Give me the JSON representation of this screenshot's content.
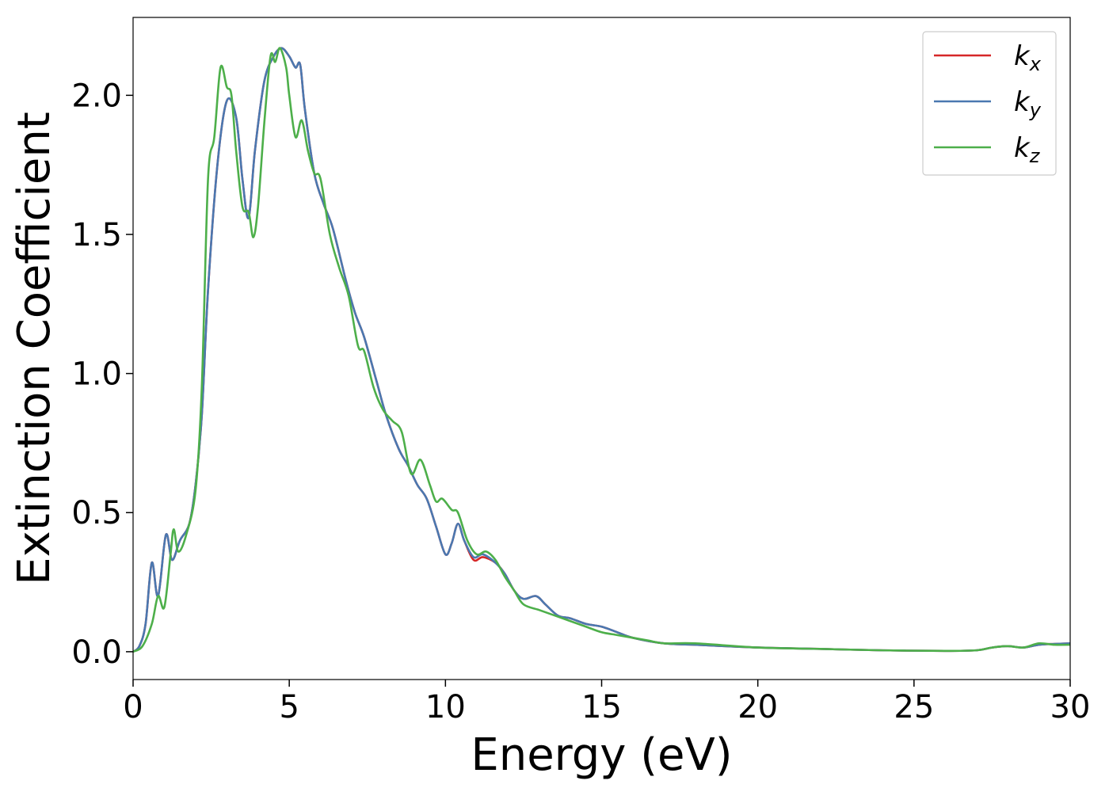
{
  "chart_data": {
    "type": "line",
    "title": "",
    "xlabel": "Energy (eV)",
    "ylabel": "Extinction Coefficient",
    "xlim": [
      0,
      30
    ],
    "ylim": [
      -0.1,
      2.28
    ],
    "xticks": [
      0,
      5,
      10,
      15,
      20,
      25,
      30
    ],
    "xtick_labels": [
      "0",
      "5",
      "10",
      "15",
      "20",
      "25",
      "30"
    ],
    "yticks": [
      0.0,
      0.5,
      1.0,
      1.5,
      2.0
    ],
    "ytick_labels": [
      "0.0",
      "0.5",
      "1.0",
      "1.5",
      "2.0"
    ],
    "grid": false,
    "legend_position": "top-right",
    "series": [
      {
        "name": "k",
        "subscript": "x",
        "color": "#d62728",
        "points": [
          [
            0,
            0
          ],
          [
            0.2,
            0.02
          ],
          [
            0.4,
            0.1
          ],
          [
            0.6,
            0.32
          ],
          [
            0.8,
            0.2
          ],
          [
            1.05,
            0.42
          ],
          [
            1.25,
            0.33
          ],
          [
            1.5,
            0.4
          ],
          [
            1.8,
            0.46
          ],
          [
            2.0,
            0.6
          ],
          [
            2.2,
            0.85
          ],
          [
            2.4,
            1.3
          ],
          [
            2.7,
            1.75
          ],
          [
            3.0,
            1.98
          ],
          [
            3.3,
            1.92
          ],
          [
            3.5,
            1.7
          ],
          [
            3.7,
            1.56
          ],
          [
            3.9,
            1.8
          ],
          [
            4.2,
            2.05
          ],
          [
            4.5,
            2.14
          ],
          [
            4.75,
            2.17
          ],
          [
            5.0,
            2.14
          ],
          [
            5.2,
            2.1
          ],
          [
            5.35,
            2.11
          ],
          [
            5.5,
            1.95
          ],
          [
            5.8,
            1.72
          ],
          [
            6.1,
            1.61
          ],
          [
            6.4,
            1.52
          ],
          [
            6.8,
            1.34
          ],
          [
            7.1,
            1.22
          ],
          [
            7.4,
            1.13
          ],
          [
            7.8,
            0.97
          ],
          [
            8.1,
            0.85
          ],
          [
            8.5,
            0.73
          ],
          [
            8.8,
            0.67
          ],
          [
            9.1,
            0.6
          ],
          [
            9.4,
            0.55
          ],
          [
            9.7,
            0.45
          ],
          [
            10.0,
            0.35
          ],
          [
            10.2,
            0.39
          ],
          [
            10.4,
            0.46
          ],
          [
            10.6,
            0.4
          ],
          [
            10.9,
            0.33
          ],
          [
            11.2,
            0.34
          ],
          [
            11.6,
            0.32
          ],
          [
            11.9,
            0.28
          ],
          [
            12.2,
            0.22
          ],
          [
            12.5,
            0.19
          ],
          [
            12.9,
            0.2
          ],
          [
            13.2,
            0.17
          ],
          [
            13.6,
            0.13
          ],
          [
            14.0,
            0.12
          ],
          [
            14.5,
            0.1
          ],
          [
            15.0,
            0.09
          ],
          [
            15.5,
            0.07
          ],
          [
            16.0,
            0.05
          ],
          [
            17.0,
            0.03
          ],
          [
            18.0,
            0.025
          ],
          [
            20.0,
            0.015
          ],
          [
            22.0,
            0.01
          ],
          [
            24.0,
            0.005
          ],
          [
            26.0,
            0.003
          ],
          [
            27.0,
            0.005
          ],
          [
            27.5,
            0.015
          ],
          [
            28.0,
            0.02
          ],
          [
            28.5,
            0.015
          ],
          [
            29.0,
            0.025
          ],
          [
            29.5,
            0.028
          ],
          [
            30.0,
            0.03
          ]
        ]
      },
      {
        "name": "k",
        "subscript": "y",
        "color": "#4a78b0",
        "points": [
          [
            0,
            0
          ],
          [
            0.2,
            0.02
          ],
          [
            0.4,
            0.1
          ],
          [
            0.6,
            0.32
          ],
          [
            0.8,
            0.2
          ],
          [
            1.05,
            0.42
          ],
          [
            1.25,
            0.33
          ],
          [
            1.5,
            0.4
          ],
          [
            1.8,
            0.46
          ],
          [
            2.0,
            0.6
          ],
          [
            2.2,
            0.85
          ],
          [
            2.4,
            1.3
          ],
          [
            2.7,
            1.75
          ],
          [
            3.0,
            1.98
          ],
          [
            3.3,
            1.92
          ],
          [
            3.5,
            1.7
          ],
          [
            3.7,
            1.56
          ],
          [
            3.9,
            1.8
          ],
          [
            4.2,
            2.05
          ],
          [
            4.5,
            2.14
          ],
          [
            4.75,
            2.17
          ],
          [
            5.0,
            2.14
          ],
          [
            5.2,
            2.1
          ],
          [
            5.35,
            2.11
          ],
          [
            5.5,
            1.95
          ],
          [
            5.8,
            1.72
          ],
          [
            6.1,
            1.61
          ],
          [
            6.4,
            1.52
          ],
          [
            6.8,
            1.34
          ],
          [
            7.1,
            1.22
          ],
          [
            7.4,
            1.13
          ],
          [
            7.8,
            0.97
          ],
          [
            8.1,
            0.85
          ],
          [
            8.5,
            0.73
          ],
          [
            8.8,
            0.67
          ],
          [
            9.1,
            0.6
          ],
          [
            9.4,
            0.55
          ],
          [
            9.7,
            0.45
          ],
          [
            10.0,
            0.35
          ],
          [
            10.2,
            0.39
          ],
          [
            10.4,
            0.46
          ],
          [
            10.6,
            0.4
          ],
          [
            10.9,
            0.34
          ],
          [
            11.2,
            0.35
          ],
          [
            11.6,
            0.32
          ],
          [
            11.9,
            0.28
          ],
          [
            12.2,
            0.22
          ],
          [
            12.5,
            0.19
          ],
          [
            12.9,
            0.2
          ],
          [
            13.2,
            0.17
          ],
          [
            13.6,
            0.13
          ],
          [
            14.0,
            0.12
          ],
          [
            14.5,
            0.1
          ],
          [
            15.0,
            0.09
          ],
          [
            15.5,
            0.07
          ],
          [
            16.0,
            0.05
          ],
          [
            17.0,
            0.03
          ],
          [
            18.0,
            0.025
          ],
          [
            20.0,
            0.015
          ],
          [
            22.0,
            0.01
          ],
          [
            24.0,
            0.005
          ],
          [
            26.0,
            0.003
          ],
          [
            27.0,
            0.005
          ],
          [
            27.5,
            0.015
          ],
          [
            28.0,
            0.02
          ],
          [
            28.5,
            0.015
          ],
          [
            29.0,
            0.025
          ],
          [
            29.5,
            0.028
          ],
          [
            30.0,
            0.03
          ]
        ]
      },
      {
        "name": "k",
        "subscript": "z",
        "color": "#4daf4a",
        "points": [
          [
            0,
            0
          ],
          [
            0.3,
            0.02
          ],
          [
            0.6,
            0.1
          ],
          [
            0.8,
            0.2
          ],
          [
            1.0,
            0.16
          ],
          [
            1.2,
            0.35
          ],
          [
            1.3,
            0.44
          ],
          [
            1.45,
            0.36
          ],
          [
            1.7,
            0.42
          ],
          [
            2.0,
            0.58
          ],
          [
            2.2,
            0.95
          ],
          [
            2.4,
            1.7
          ],
          [
            2.6,
            1.85
          ],
          [
            2.8,
            2.1
          ],
          [
            3.0,
            2.03
          ],
          [
            3.15,
            2.0
          ],
          [
            3.3,
            1.8
          ],
          [
            3.5,
            1.6
          ],
          [
            3.7,
            1.58
          ],
          [
            3.85,
            1.49
          ],
          [
            4.0,
            1.6
          ],
          [
            4.2,
            1.9
          ],
          [
            4.4,
            2.14
          ],
          [
            4.55,
            2.12
          ],
          [
            4.7,
            2.17
          ],
          [
            4.9,
            2.1
          ],
          [
            5.0,
            2.0
          ],
          [
            5.2,
            1.85
          ],
          [
            5.4,
            1.91
          ],
          [
            5.6,
            1.8
          ],
          [
            5.8,
            1.72
          ],
          [
            6.0,
            1.7
          ],
          [
            6.3,
            1.5
          ],
          [
            6.6,
            1.38
          ],
          [
            6.9,
            1.28
          ],
          [
            7.2,
            1.1
          ],
          [
            7.4,
            1.08
          ],
          [
            7.7,
            0.95
          ],
          [
            8.0,
            0.87
          ],
          [
            8.3,
            0.83
          ],
          [
            8.6,
            0.79
          ],
          [
            8.9,
            0.64
          ],
          [
            9.2,
            0.69
          ],
          [
            9.5,
            0.6
          ],
          [
            9.7,
            0.54
          ],
          [
            9.9,
            0.55
          ],
          [
            10.2,
            0.51
          ],
          [
            10.4,
            0.5
          ],
          [
            10.7,
            0.4
          ],
          [
            11.0,
            0.35
          ],
          [
            11.3,
            0.36
          ],
          [
            11.6,
            0.33
          ],
          [
            11.9,
            0.27
          ],
          [
            12.2,
            0.22
          ],
          [
            12.5,
            0.17
          ],
          [
            13.0,
            0.15
          ],
          [
            13.5,
            0.13
          ],
          [
            14.0,
            0.11
          ],
          [
            14.5,
            0.09
          ],
          [
            15.0,
            0.07
          ],
          [
            15.5,
            0.06
          ],
          [
            16.0,
            0.05
          ],
          [
            16.5,
            0.04
          ],
          [
            17.0,
            0.03
          ],
          [
            18.0,
            0.03
          ],
          [
            20.0,
            0.015
          ],
          [
            22.0,
            0.01
          ],
          [
            24.0,
            0.005
          ],
          [
            26.0,
            0.003
          ],
          [
            27.0,
            0.005
          ],
          [
            27.5,
            0.015
          ],
          [
            28.0,
            0.02
          ],
          [
            28.5,
            0.015
          ],
          [
            29.0,
            0.03
          ],
          [
            29.5,
            0.025
          ],
          [
            30.0,
            0.025
          ]
        ]
      }
    ]
  }
}
